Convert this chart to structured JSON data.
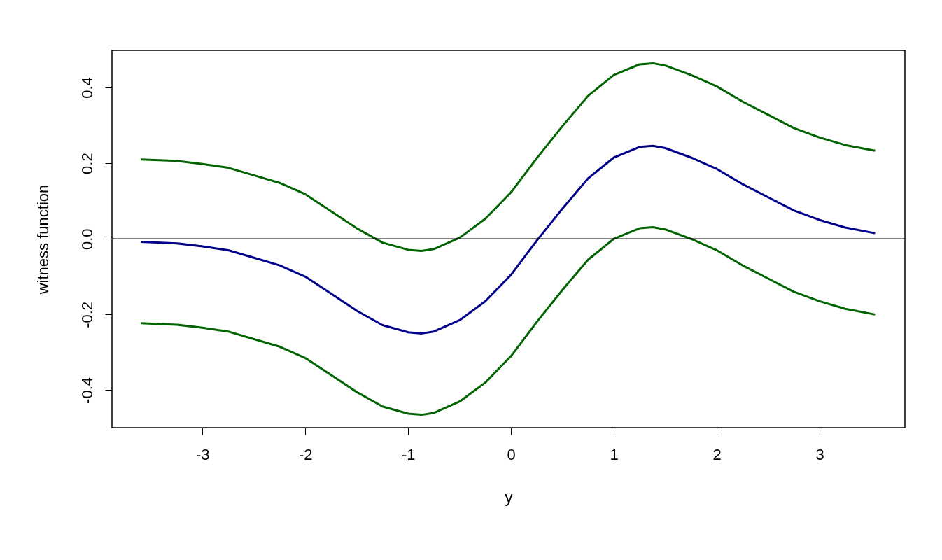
{
  "chart_data": {
    "type": "line",
    "xlabel": "y",
    "ylabel": "witness function",
    "x": [
      -3.6,
      -3.25,
      -3,
      -2.75,
      -2.5,
      -2.25,
      -2,
      -1.75,
      -1.5,
      -1.25,
      -1,
      -0.87,
      -0.75,
      -0.5,
      -0.25,
      0,
      0.25,
      0.5,
      0.75,
      1,
      1.25,
      1.38,
      1.5,
      1.75,
      2,
      2.25,
      2.5,
      2.75,
      3,
      3.25,
      3.54
    ],
    "series": [
      {
        "color": "#006400",
        "values": [
          0.21,
          0.206,
          0.198,
          0.188,
          0.168,
          0.148,
          0.118,
          0.073,
          0.028,
          -0.01,
          -0.029,
          -0.032,
          -0.027,
          0.003,
          0.053,
          0.123,
          0.213,
          0.298,
          0.378,
          0.433,
          0.461,
          0.464,
          0.458,
          0.433,
          0.403,
          0.363,
          0.328,
          0.293,
          0.268,
          0.248,
          0.233
        ]
      },
      {
        "color": "#00008b",
        "values": [
          -0.008,
          -0.012,
          -0.02,
          -0.03,
          -0.05,
          -0.07,
          -0.1,
          -0.145,
          -0.19,
          -0.228,
          -0.247,
          -0.25,
          -0.245,
          -0.215,
          -0.165,
          -0.095,
          -0.005,
          0.08,
          0.16,
          0.215,
          0.243,
          0.246,
          0.24,
          0.215,
          0.185,
          0.145,
          0.11,
          0.075,
          0.05,
          0.03,
          0.015
        ]
      },
      {
        "color": "#006400",
        "values": [
          -0.223,
          -0.227,
          -0.235,
          -0.245,
          -0.265,
          -0.285,
          -0.315,
          -0.36,
          -0.405,
          -0.443,
          -0.462,
          -0.465,
          -0.46,
          -0.43,
          -0.38,
          -0.31,
          -0.22,
          -0.135,
          -0.055,
          0.0,
          0.028,
          0.031,
          0.025,
          0.0,
          -0.03,
          -0.07,
          -0.105,
          -0.14,
          -0.165,
          -0.185,
          -0.2
        ]
      }
    ],
    "xlim": [
      -3.88,
      3.83
    ],
    "ylim": [
      -0.499,
      0.498
    ],
    "xticks": [
      -3,
      -2,
      -1,
      0,
      1,
      2,
      3
    ],
    "yticks": [
      {
        "value": -0.4,
        "label": "-0.4"
      },
      {
        "value": -0.2,
        "label": "-0.2"
      },
      {
        "value": 0,
        "label": "0.0"
      },
      {
        "value": 0.2,
        "label": "0.2"
      },
      {
        "value": 0.4,
        "label": "0.4"
      }
    ],
    "ref_lines": [
      {
        "axis": "y",
        "value": 0,
        "color": "#000000"
      }
    ],
    "grid": false,
    "marker": "none",
    "line_style": "solid"
  }
}
